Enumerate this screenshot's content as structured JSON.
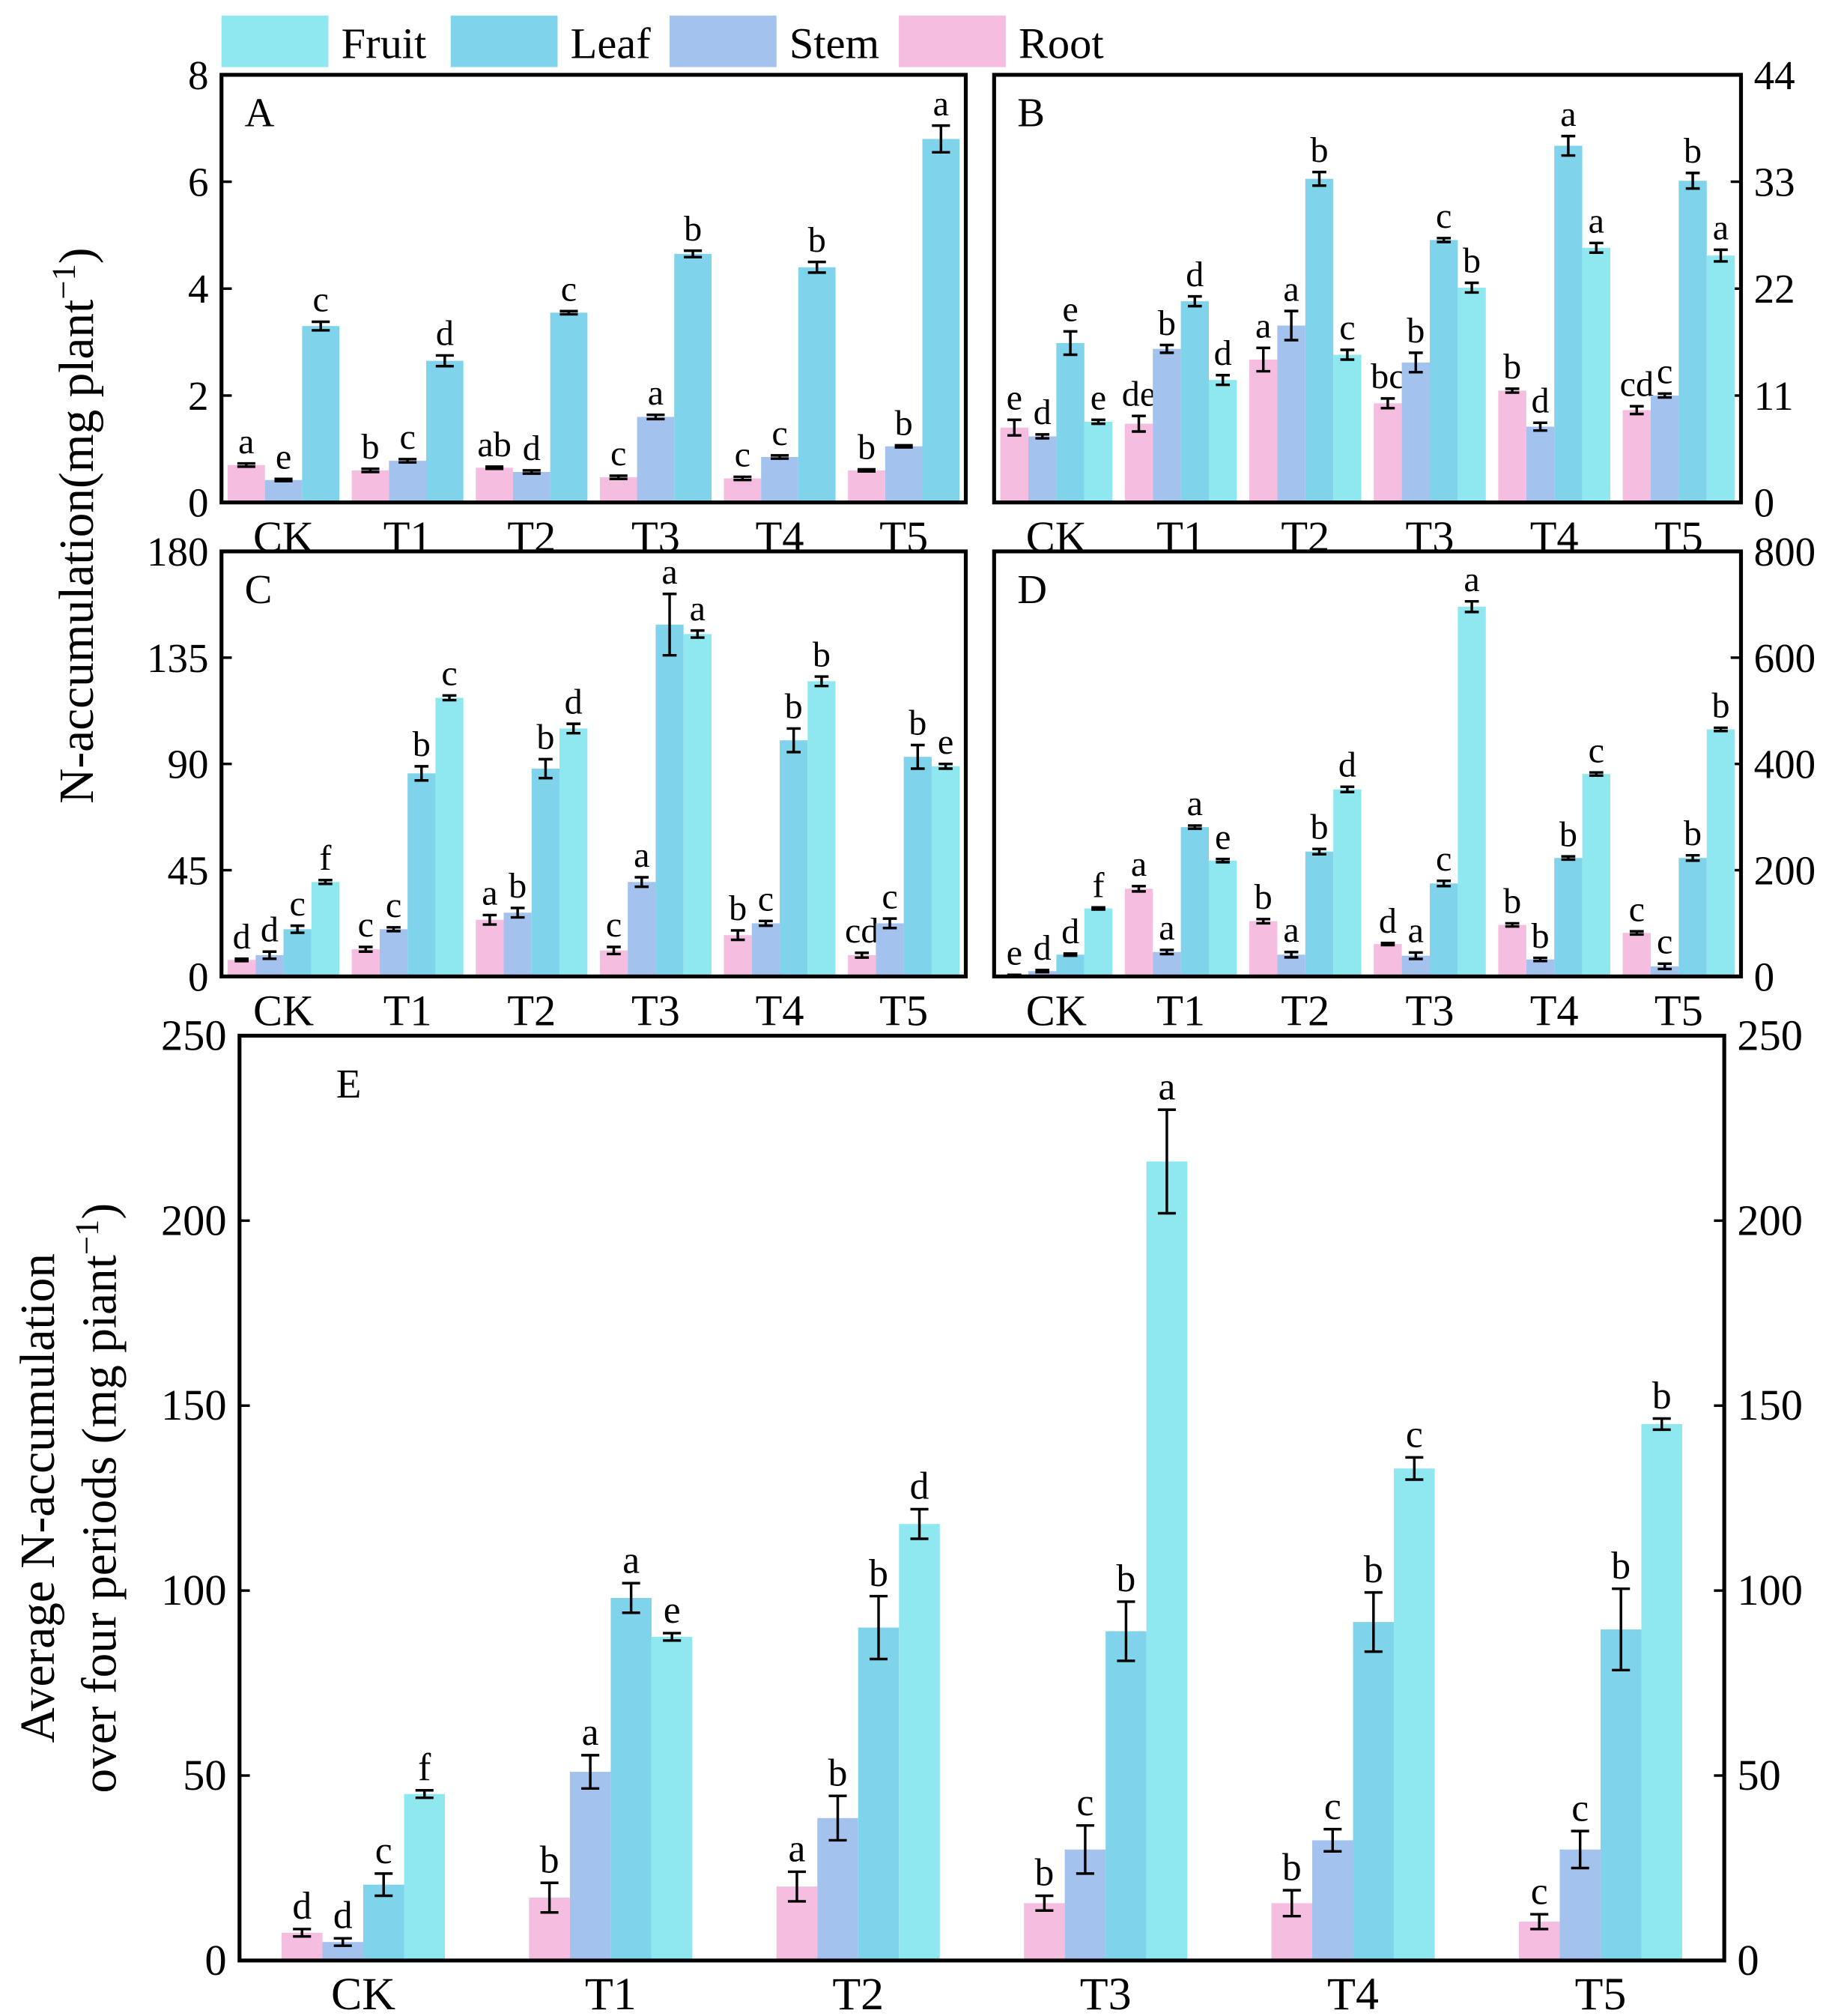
{
  "legend_order": [
    "Fruit",
    "Leaf",
    "Stem",
    "Root"
  ],
  "ylabel": {
    "text": "N-accumulation(mg plant",
    "sup": "−1",
    "end": ")"
  },
  "ylabel_e": {
    "line1": "Average N-accumulation",
    "line2": "over four periods (mg piant",
    "sup": "−1",
    "end": ")"
  },
  "chart_data": [
    {
      "type": "bar",
      "label": "A",
      "axis_side": "left",
      "categories": [
        "CK",
        "T1",
        "T2",
        "T3",
        "T4",
        "T5"
      ],
      "ylim": [
        0,
        8
      ],
      "yticks": [
        0,
        2,
        4,
        6,
        8
      ],
      "series": [
        {
          "name": "Root",
          "color": "#f5bde0",
          "values": [
            0.7,
            0.6,
            0.65,
            0.47,
            0.45,
            0.6
          ],
          "errors": [
            0.03,
            0.03,
            0.02,
            0.03,
            0.03,
            0.02
          ],
          "letters": [
            "a",
            "b",
            "ab",
            "c",
            "c",
            "b"
          ]
        },
        {
          "name": "Stem",
          "color": "#a4c2ee",
          "values": [
            0.42,
            0.78,
            0.57,
            1.6,
            0.85,
            1.05
          ],
          "errors": [
            0.02,
            0.03,
            0.03,
            0.04,
            0.03,
            0.02
          ],
          "letters": [
            "e",
            "c",
            "d",
            "a",
            "c",
            "b"
          ]
        },
        {
          "name": "Leaf",
          "color": "#7fd4ec",
          "values": [
            3.3,
            2.65,
            3.55,
            4.65,
            4.4,
            6.8
          ],
          "errors": [
            0.08,
            0.1,
            0.03,
            0.06,
            0.1,
            0.25
          ],
          "letters": [
            "c",
            "d",
            "c",
            "b",
            "b",
            "a"
          ]
        }
      ]
    },
    {
      "type": "bar",
      "label": "B",
      "axis_side": "right",
      "categories": [
        "CK",
        "T1",
        "T2",
        "T3",
        "T4",
        "T5"
      ],
      "ylim": [
        0,
        44
      ],
      "yticks": [
        0,
        11,
        22,
        33,
        44
      ],
      "series": [
        {
          "name": "Root",
          "color": "#f5bde0",
          "values": [
            7.7,
            8.1,
            14.7,
            10.2,
            11.5,
            9.5
          ],
          "errors": [
            0.8,
            0.8,
            1.2,
            0.5,
            0.2,
            0.4
          ],
          "letters": [
            "e",
            "de",
            "a",
            "bc",
            "b",
            "cd"
          ]
        },
        {
          "name": "Stem",
          "color": "#a4c2ee",
          "values": [
            6.8,
            15.8,
            18.2,
            14.4,
            7.8,
            11.0
          ],
          "errors": [
            0.2,
            0.4,
            1.5,
            1.0,
            0.4,
            0.2
          ],
          "letters": [
            "d",
            "b",
            "a",
            "b",
            "d",
            "c"
          ]
        },
        {
          "name": "Leaf",
          "color": "#7fd4ec",
          "values": [
            16.4,
            20.7,
            33.3,
            27.0,
            36.7,
            33.1
          ],
          "errors": [
            1.2,
            0.5,
            0.7,
            0.2,
            1.0,
            0.8
          ],
          "letters": [
            "e",
            "d",
            "b",
            "c",
            "a",
            "b"
          ]
        },
        {
          "name": "Fruit",
          "color": "#8fe8f0",
          "values": [
            8.3,
            12.6,
            15.2,
            22.1,
            26.2,
            25.4
          ],
          "errors": [
            0.2,
            0.5,
            0.5,
            0.5,
            0.5,
            0.6
          ],
          "letters": [
            "e",
            "d",
            "c",
            "b",
            "a",
            "a"
          ]
        }
      ]
    },
    {
      "type": "bar",
      "label": "C",
      "axis_side": "left",
      "categories": [
        "CK",
        "T1",
        "T2",
        "T3",
        "T4",
        "T5"
      ],
      "ylim": [
        0,
        180
      ],
      "yticks": [
        0,
        45,
        90,
        135,
        180
      ],
      "series": [
        {
          "name": "Root",
          "color": "#f5bde0",
          "values": [
            7,
            11.5,
            24,
            11,
            17.5,
            9
          ],
          "errors": [
            0.5,
            1,
            2,
            1.5,
            2,
            1
          ],
          "letters": [
            "d",
            "c",
            "a",
            "c",
            "b",
            "cd"
          ]
        },
        {
          "name": "Stem",
          "color": "#a4c2ee",
          "values": [
            9,
            20,
            27,
            40,
            22.5,
            22.5
          ],
          "errors": [
            1.5,
            0.8,
            2,
            2,
            1,
            2
          ],
          "letters": [
            "d",
            "c",
            "b",
            "a",
            "c",
            "c"
          ]
        },
        {
          "name": "Leaf",
          "color": "#7fd4ec",
          "values": [
            20,
            86,
            88,
            149,
            100,
            93
          ],
          "errors": [
            1.5,
            3,
            4,
            13,
            5,
            5
          ],
          "letters": [
            "c",
            "b",
            "b",
            "a",
            "b",
            "b"
          ]
        },
        {
          "name": "Fruit",
          "color": "#8fe8f0",
          "values": [
            40,
            118,
            105,
            145,
            125,
            89
          ],
          "errors": [
            0.8,
            1,
            2,
            1.5,
            2,
            1
          ],
          "letters": [
            "f",
            "c",
            "d",
            "a",
            "b",
            "e"
          ]
        }
      ]
    },
    {
      "type": "bar",
      "label": "D",
      "axis_side": "right",
      "categories": [
        "CK",
        "T1",
        "T2",
        "T3",
        "T4",
        "T5"
      ],
      "ylim": [
        0,
        800
      ],
      "yticks": [
        0,
        200,
        400,
        600,
        800
      ],
      "series": [
        {
          "name": "Root",
          "color": "#f5bde0",
          "values": [
            2,
            165,
            104,
            61,
            97,
            82
          ],
          "errors": [
            1,
            5,
            4,
            2,
            3,
            3
          ],
          "letters": [
            "e",
            "a",
            "b",
            "d",
            "b",
            "c"
          ]
        },
        {
          "name": "Stem",
          "color": "#a4c2ee",
          "values": [
            10,
            46,
            41,
            39,
            32,
            19
          ],
          "errors": [
            2,
            4,
            5,
            6,
            3,
            5
          ],
          "letters": [
            "d",
            "a",
            "a",
            "a",
            "b",
            "c"
          ]
        },
        {
          "name": "Leaf",
          "color": "#7fd4ec",
          "values": [
            41,
            281,
            235,
            175,
            223,
            223
          ],
          "errors": [
            2,
            3,
            5,
            5,
            3,
            5
          ],
          "letters": [
            "d",
            "a",
            "b",
            "c",
            "b",
            "b"
          ]
        },
        {
          "name": "Fruit",
          "color": "#8fe8f0",
          "values": [
            128,
            218,
            352,
            696,
            381,
            465
          ],
          "errors": [
            2,
            3,
            5,
            10,
            3,
            3
          ],
          "letters": [
            "f",
            "e",
            "d",
            "a",
            "c",
            "b"
          ]
        }
      ]
    },
    {
      "type": "bar",
      "label": "E",
      "axis_side": "both",
      "categories": [
        "CK",
        "T1",
        "T2",
        "T3",
        "T4",
        "T5"
      ],
      "ylim": [
        0,
        250
      ],
      "yticks": [
        0,
        50,
        100,
        150,
        200,
        250
      ],
      "y2lim": [
        0,
        250
      ],
      "y2ticks": [
        0,
        50,
        100,
        150,
        200,
        250
      ],
      "series": [
        {
          "name": "Root",
          "color": "#f5bde0",
          "values": [
            7.5,
            17,
            20,
            15.5,
            15.5,
            10.5
          ],
          "errors": [
            1,
            4,
            4,
            2,
            3.5,
            2
          ],
          "letters": [
            "d",
            "b",
            "a",
            "b",
            "b",
            "c"
          ]
        },
        {
          "name": "Stem",
          "color": "#a4c2ee",
          "values": [
            5,
            51,
            38.5,
            30,
            32.5,
            30
          ],
          "errors": [
            1,
            4.5,
            6,
            6.5,
            3,
            5
          ],
          "letters": [
            "d",
            "a",
            "b",
            "c",
            "c",
            "c"
          ]
        },
        {
          "name": "Leaf",
          "color": "#7fd4ec",
          "values": [
            20.5,
            98,
            90,
            89,
            91.5,
            89.5
          ],
          "errors": [
            3,
            4,
            8.5,
            8,
            8,
            11
          ],
          "letters": [
            "c",
            "a",
            "b",
            "b",
            "b",
            "b"
          ]
        },
        {
          "name": "Fruit",
          "color": "#8fe8f0",
          "values": [
            45,
            87.5,
            118,
            216,
            133,
            145
          ],
          "errors": [
            1,
            1,
            4,
            14,
            3,
            1.5
          ],
          "letters": [
            "f",
            "e",
            "d",
            "a",
            "c",
            "b"
          ]
        }
      ]
    }
  ]
}
